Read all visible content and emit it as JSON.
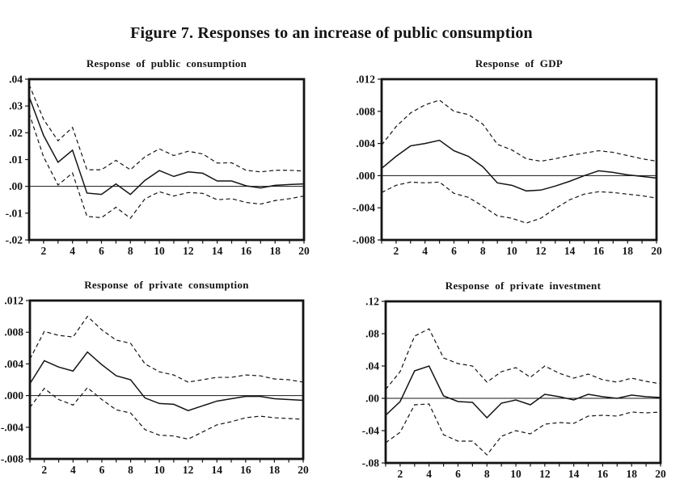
{
  "figure_title": "Figure 7. Responses to an increase of public consumption",
  "ink_color": "#141414",
  "background_color": "#ffffff",
  "chart_data": [
    {
      "type": "line",
      "title": "Response of public consumption",
      "x": [
        1,
        2,
        3,
        4,
        5,
        6,
        7,
        8,
        9,
        10,
        11,
        12,
        13,
        14,
        15,
        16,
        17,
        18,
        19,
        20
      ],
      "x_tick_values": [
        2,
        4,
        6,
        8,
        10,
        12,
        14,
        16,
        18,
        20
      ],
      "x_tick_labels": [
        "2",
        "4",
        "6",
        "8",
        "10",
        "12",
        "14",
        "16",
        "18",
        "20"
      ],
      "ylim": [
        -0.02,
        0.04
      ],
      "ytick_values": [
        0.04,
        0.03,
        0.02,
        0.01,
        0,
        -0.01,
        -0.02
      ],
      "ytick_labels": [
        ".04",
        ".03",
        ".02",
        ".01",
        ".00",
        "-.01",
        "-.02"
      ],
      "grid": false,
      "legend": "none",
      "zero_line": true,
      "series": [
        {
          "name": "response",
          "style": "solid",
          "values": [
            0.0335,
            0.019,
            0.009,
            0.0135,
            -0.0025,
            -0.003,
            0.0009,
            -0.003,
            0.0022,
            0.0059,
            0.0037,
            0.0054,
            0.0049,
            0.002,
            0.002,
            0.0002,
            -0.0006,
            0.0004,
            0.0007,
            0.0009
          ]
        },
        {
          "name": "upper confidence band",
          "style": "dashed",
          "values": [
            0.038,
            0.025,
            0.017,
            0.022,
            0.0062,
            0.0062,
            0.0097,
            0.0062,
            0.011,
            0.014,
            0.0115,
            0.0131,
            0.0121,
            0.0087,
            0.0088,
            0.006,
            0.0054,
            0.006,
            0.006,
            0.0057
          ]
        },
        {
          "name": "lower confidence band",
          "style": "dashed",
          "values": [
            0.0273,
            0.011,
            0.0005,
            0.005,
            -0.0112,
            -0.0117,
            -0.0078,
            -0.0119,
            -0.0047,
            -0.002,
            -0.0036,
            -0.0023,
            -0.0026,
            -0.005,
            -0.0046,
            -0.006,
            -0.0066,
            -0.0053,
            -0.0046,
            -0.0036
          ]
        }
      ]
    },
    {
      "type": "line",
      "title": "Response of GDP",
      "x": [
        1,
        2,
        3,
        4,
        5,
        6,
        7,
        8,
        9,
        10,
        11,
        12,
        13,
        14,
        15,
        16,
        17,
        18,
        19,
        20
      ],
      "x_tick_values": [
        2,
        4,
        6,
        8,
        10,
        12,
        14,
        16,
        18,
        20
      ],
      "x_tick_labels": [
        "2",
        "4",
        "6",
        "8",
        "10",
        "12",
        "14",
        "16",
        "18",
        "20"
      ],
      "ylim": [
        -0.008,
        0.012
      ],
      "ytick_values": [
        0.012,
        0.008,
        0.004,
        0,
        -0.004,
        -0.008
      ],
      "ytick_labels": [
        ".012",
        ".008",
        ".004",
        ".000",
        "-.004",
        "-.008"
      ],
      "grid": false,
      "legend": "none",
      "zero_line": true,
      "series": [
        {
          "name": "response",
          "style": "solid",
          "values": [
            0.0009,
            0.0024,
            0.0037,
            0.004,
            0.0044,
            0.0031,
            0.0024,
            0.0011,
            -0.0009,
            -0.0012,
            -0.0019,
            -0.0018,
            -0.0013,
            -0.0007,
            0,
            0.0006,
            0.0004,
            0.0001,
            -0.0001,
            -0.0003
          ]
        },
        {
          "name": "upper confidence band",
          "style": "dashed",
          "values": [
            0.0038,
            0.0061,
            0.0078,
            0.0088,
            0.0094,
            0.008,
            0.0076,
            0.0064,
            0.0039,
            0.0032,
            0.0021,
            0.0018,
            0.0021,
            0.0025,
            0.0028,
            0.0031,
            0.0029,
            0.0025,
            0.0021,
            0.0018
          ]
        },
        {
          "name": "lower confidence band",
          "style": "dashed",
          "values": [
            -0.0021,
            -0.0012,
            -0.0008,
            -0.0009,
            -0.0008,
            -0.0022,
            -0.0027,
            -0.0038,
            -0.005,
            -0.0053,
            -0.0059,
            -0.0053,
            -0.0041,
            -0.003,
            -0.0023,
            -0.002,
            -0.0021,
            -0.0023,
            -0.0025,
            -0.0028
          ]
        }
      ]
    },
    {
      "type": "line",
      "title": "Response of private consumption",
      "x": [
        1,
        2,
        3,
        4,
        5,
        6,
        7,
        8,
        9,
        10,
        11,
        12,
        13,
        14,
        15,
        16,
        17,
        18,
        19,
        20
      ],
      "x_tick_values": [
        2,
        4,
        6,
        8,
        10,
        12,
        14,
        16,
        18,
        20
      ],
      "x_tick_labels": [
        "2",
        "4",
        "6",
        "8",
        "10",
        "12",
        "14",
        "16",
        "18",
        "20"
      ],
      "ylim": [
        -0.008,
        0.012
      ],
      "ytick_values": [
        0.012,
        0.008,
        0.004,
        0,
        -0.004,
        -0.008
      ],
      "ytick_labels": [
        ".012",
        ".008",
        ".004",
        ".000",
        "-.004",
        "-.008"
      ],
      "grid": false,
      "legend": "none",
      "zero_line": true,
      "series": [
        {
          "name": "response",
          "style": "solid",
          "values": [
            0.0015,
            0.0044,
            0.0036,
            0.0031,
            0.0055,
            0.0039,
            0.0025,
            0.002,
            -0.0003,
            -0.001,
            -0.0011,
            -0.0019,
            -0.0013,
            -0.0007,
            -0.0004,
            -0.0001,
            -0.0001,
            -0.0004,
            -0.0005,
            -0.0006
          ]
        },
        {
          "name": "upper confidence band",
          "style": "dashed",
          "values": [
            0.0046,
            0.0081,
            0.0076,
            0.0074,
            0.01,
            0.0083,
            0.007,
            0.0066,
            0.004,
            0.003,
            0.0026,
            0.0017,
            0.002,
            0.0023,
            0.0023,
            0.0026,
            0.0025,
            0.0021,
            0.002,
            0.0017
          ]
        },
        {
          "name": "lower confidence band",
          "style": "dashed",
          "values": [
            -0.0015,
            0.0009,
            -0.0005,
            -0.0012,
            0.001,
            -0.0005,
            -0.0018,
            -0.0022,
            -0.0043,
            -0.005,
            -0.0051,
            -0.0055,
            -0.0046,
            -0.0037,
            -0.0033,
            -0.0028,
            -0.0026,
            -0.0028,
            -0.0029,
            -0.003
          ]
        }
      ]
    },
    {
      "type": "line",
      "title": "Response of private investment",
      "x": [
        1,
        2,
        3,
        4,
        5,
        6,
        7,
        8,
        9,
        10,
        11,
        12,
        13,
        14,
        15,
        16,
        17,
        18,
        19,
        20
      ],
      "x_tick_values": [
        2,
        4,
        6,
        8,
        10,
        12,
        14,
        16,
        18,
        20
      ],
      "x_tick_labels": [
        "2",
        "4",
        "6",
        "8",
        "10",
        "12",
        "14",
        "16",
        "18",
        "20"
      ],
      "ylim": [
        -0.08,
        0.12
      ],
      "ytick_values": [
        0.12,
        0.08,
        0.04,
        0,
        -0.04,
        -0.08
      ],
      "ytick_labels": [
        ".12",
        ".08",
        ".04",
        ".00",
        "-.04",
        "-.08"
      ],
      "grid": false,
      "legend": "none",
      "zero_line": true,
      "series": [
        {
          "name": "response",
          "style": "solid",
          "values": [
            -0.021,
            -0.004,
            0.034,
            0.04,
            0.003,
            -0.004,
            -0.005,
            -0.024,
            -0.006,
            -0.002,
            -0.008,
            0.005,
            0.002,
            -0.002,
            0.005,
            0.002,
            0,
            0.004,
            0.002,
            0.001
          ]
        },
        {
          "name": "upper confidence band",
          "style": "dashed",
          "values": [
            0.011,
            0.033,
            0.077,
            0.086,
            0.05,
            0.043,
            0.04,
            0.02,
            0.033,
            0.038,
            0.026,
            0.04,
            0.031,
            0.025,
            0.03,
            0.023,
            0.02,
            0.025,
            0.021,
            0.018
          ]
        },
        {
          "name": "lower confidence band",
          "style": "dashed",
          "values": [
            -0.055,
            -0.042,
            -0.008,
            -0.007,
            -0.045,
            -0.053,
            -0.053,
            -0.07,
            -0.047,
            -0.04,
            -0.044,
            -0.032,
            -0.03,
            -0.031,
            -0.022,
            -0.021,
            -0.022,
            -0.017,
            -0.018,
            -0.017
          ]
        }
      ]
    }
  ]
}
